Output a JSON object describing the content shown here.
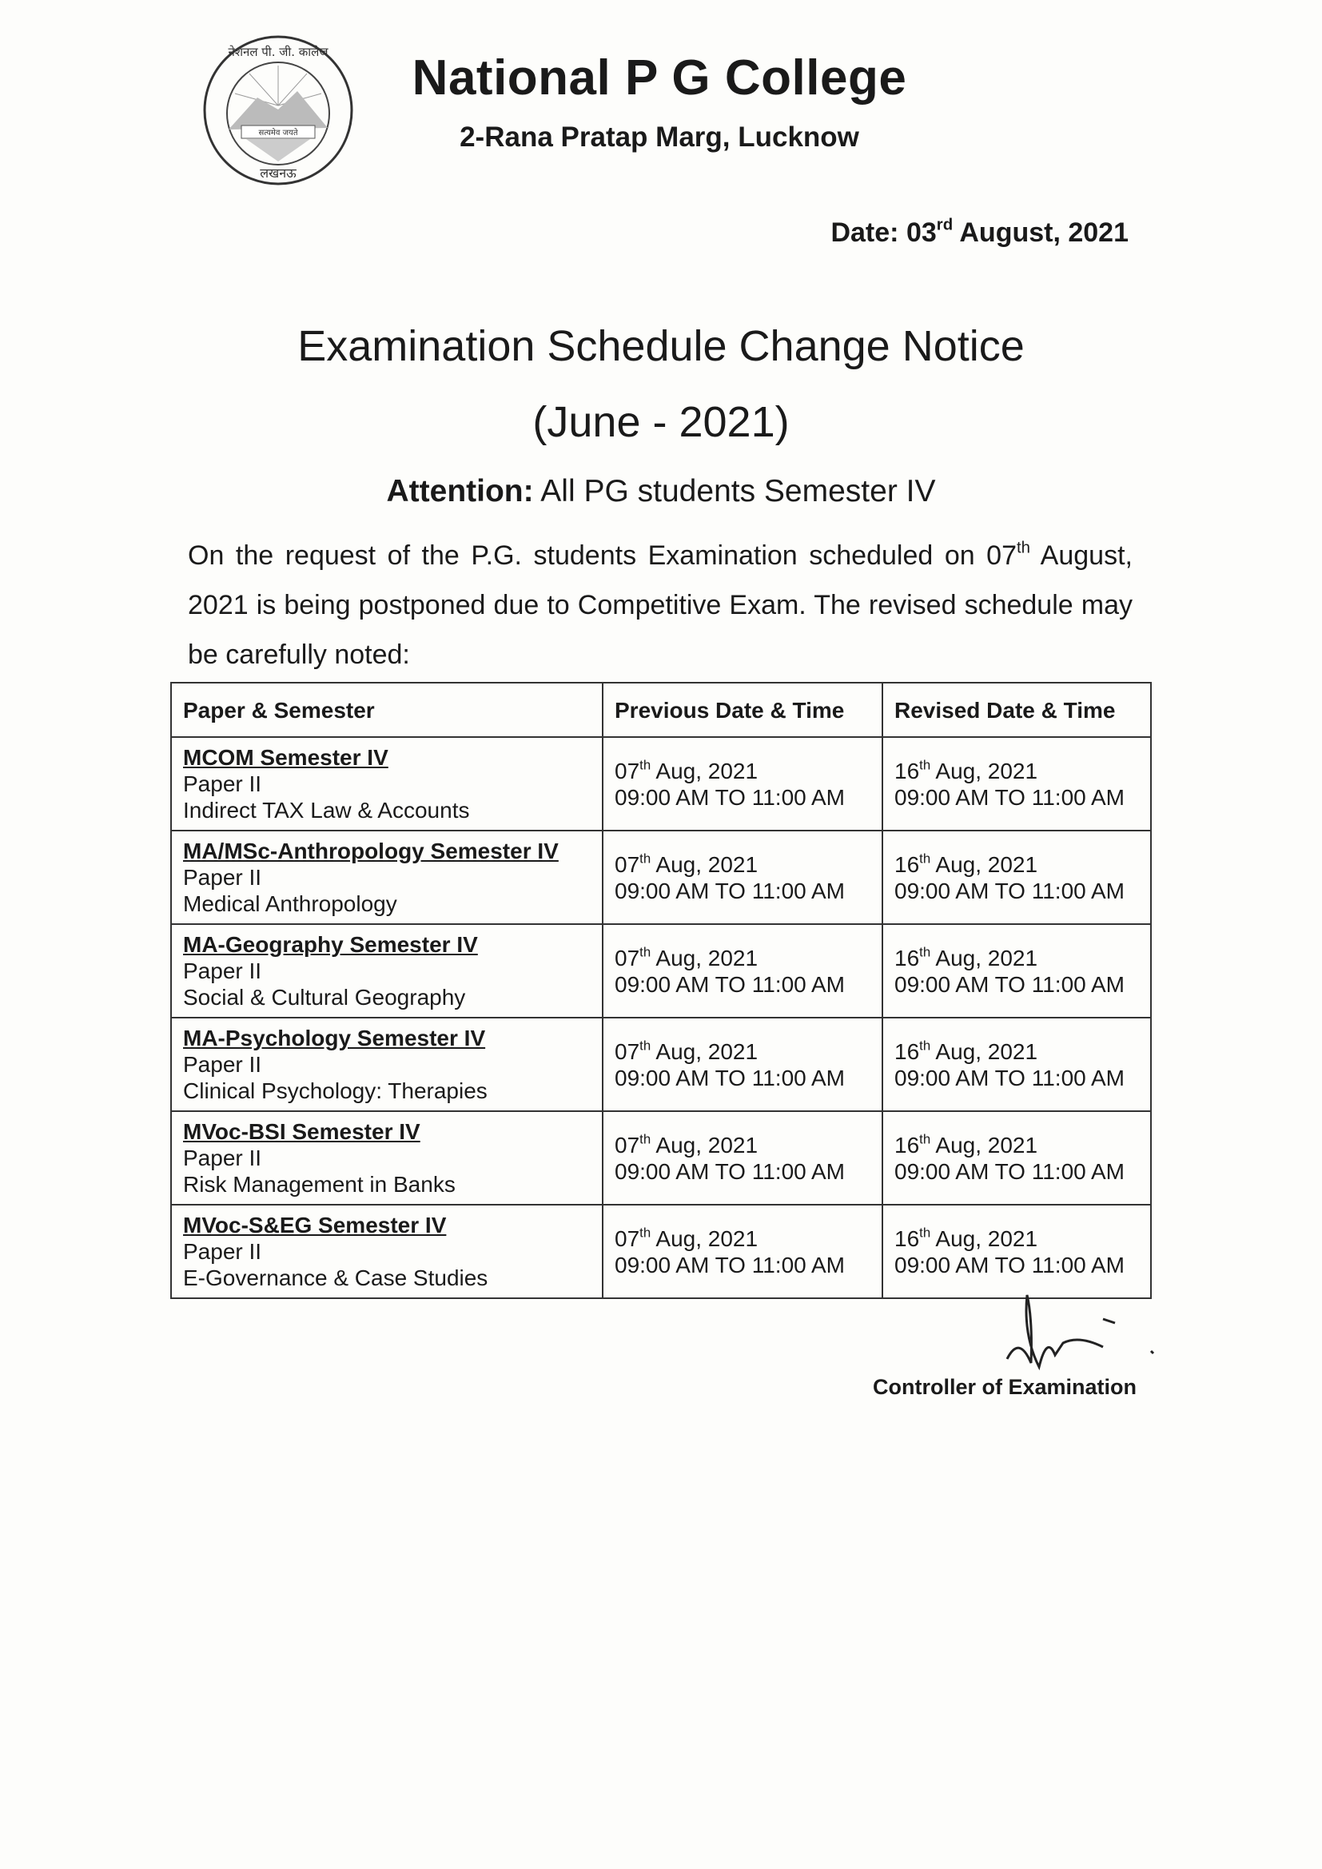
{
  "header": {
    "logo_text": {
      "top": "नेशनल पी. जी. कालेज",
      "motto": "सत्यमेव जयते",
      "bottom": "लखनऊ"
    },
    "college_name": "National P G College",
    "address": "2-Rana Pratap Marg, Lucknow"
  },
  "date": {
    "label": "Date:",
    "day": "03",
    "suffix": "rd",
    "rest": "August, 2021"
  },
  "title": "Examination Schedule Change Notice",
  "subtitle": "(June - 2021)",
  "attention": {
    "label": "Attention:",
    "text": "All PG students Semester IV"
  },
  "paragraph": {
    "part1": "On the request of the P.G. students Examination scheduled on 07",
    "sup": "th",
    "part2": " August, 2021 is being postponed due to Competitive Exam. The revised schedule may be carefully noted:"
  },
  "table": {
    "headers": [
      "Paper & Semester",
      "Previous Date & Time",
      "Revised Date & Time"
    ],
    "rows": [
      {
        "course": "MCOM Semester IV",
        "paper": "Paper II",
        "subject": "Indirect TAX Law & Accounts",
        "prev_day": "07",
        "prev_sup": "th",
        "prev_date": " Aug, 2021",
        "prev_time": "09:00 AM TO 11:00 AM",
        "rev_day": "16",
        "rev_sup": "th",
        "rev_date": " Aug, 2021",
        "rev_time": "09:00 AM TO 11:00 AM"
      },
      {
        "course": "MA/MSc-Anthropology Semester IV",
        "paper": "Paper II",
        "subject": "Medical Anthropology",
        "prev_day": "07",
        "prev_sup": "th",
        "prev_date": " Aug, 2021",
        "prev_time": "09:00 AM TO 11:00 AM",
        "rev_day": "16",
        "rev_sup": "th",
        "rev_date": " Aug, 2021",
        "rev_time": "09:00 AM TO 11:00 AM"
      },
      {
        "course": "MA-Geography Semester IV",
        "paper": "Paper II",
        "subject": "Social & Cultural Geography",
        "prev_day": "07",
        "prev_sup": "th",
        "prev_date": " Aug, 2021",
        "prev_time": "09:00 AM TO 11:00 AM",
        "rev_day": "16",
        "rev_sup": "th",
        "rev_date": " Aug, 2021",
        "rev_time": "09:00 AM TO 11:00 AM"
      },
      {
        "course": "MA-Psychology Semester IV",
        "paper": "Paper II",
        "subject": "Clinical Psychology: Therapies",
        "prev_day": "07",
        "prev_sup": "th",
        "prev_date": " Aug, 2021",
        "prev_time": "09:00 AM TO 11:00 AM",
        "rev_day": "16",
        "rev_sup": "th",
        "rev_date": " Aug, 2021",
        "rev_time": "09:00 AM TO 11:00 AM"
      },
      {
        "course": "MVoc-BSI Semester IV",
        "paper": "Paper II",
        "subject": "Risk Management in Banks",
        "prev_day": "07",
        "prev_sup": "th",
        "prev_date": " Aug, 2021",
        "prev_time": "09:00 AM TO 11:00 AM",
        "rev_day": "16",
        "rev_sup": "th",
        "rev_date": " Aug, 2021",
        "rev_time": "09:00 AM TO 11:00 AM"
      },
      {
        "course": "MVoc-S&EG Semester IV",
        "paper": "Paper II",
        "subject": "E-Governance  & Case Studies",
        "prev_day": "07",
        "prev_sup": "th",
        "prev_date": " Aug, 2021",
        "prev_time": "09:00 AM TO 11:00 AM",
        "rev_day": "16",
        "rev_sup": "th",
        "rev_date": " Aug, 2021",
        "rev_time": "09:00 AM TO 11:00 AM"
      }
    ]
  },
  "footer": {
    "signatory": "Controller of Examination"
  }
}
